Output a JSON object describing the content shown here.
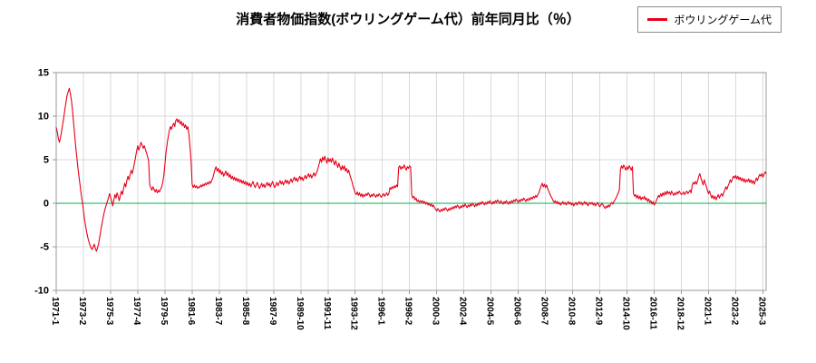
{
  "title": "消費者物価指数(ボウリングゲーム代）前年同月比（％）",
  "legend": {
    "label": "ボウリングゲーム代"
  },
  "chart_data": {
    "type": "line",
    "title": "消費者物価指数(ボウリングゲーム代）前年同月比（％）",
    "series_name": "ボウリングゲーム代",
    "ylabel": "",
    "xlabel": "",
    "ylim": [
      -10,
      15
    ],
    "y_ticks": [
      -10,
      -5,
      0,
      5,
      10,
      15
    ],
    "grid": true,
    "zero_line": true,
    "legend_position": "top-right",
    "x_frequency": "monthly",
    "x_start": "1971-1",
    "x_tick_step": 25,
    "x_ticks": [
      "1971-1",
      "1973-2",
      "1975-3",
      "1977-4",
      "1979-5",
      "1981-6",
      "1983-7",
      "1985-8",
      "1987-9",
      "1989-10",
      "1991-11",
      "1993-12",
      "1996-1",
      "1998-2",
      "2000-3",
      "2002-4",
      "2004-5",
      "2006-6",
      "2008-7",
      "2010-8",
      "2012-9",
      "2014-10",
      "2016-11",
      "2018-12",
      "2021-1",
      "2023-2",
      "2025-3"
    ],
    "colors": {
      "series": "#e60019",
      "zero_line": "#00b050",
      "grid": "#d9d9d9",
      "axis": "#9a9a9a",
      "text": "#000000"
    },
    "values": [
      8.7,
      8.2,
      7.4,
      7.0,
      7.6,
      8.3,
      9.1,
      9.9,
      10.8,
      11.6,
      12.4,
      12.8,
      13.2,
      12.6,
      11.8,
      10.6,
      9.2,
      7.8,
      6.4,
      5.2,
      4.0,
      3.0,
      2.0,
      1.0,
      0.2,
      -0.8,
      -1.8,
      -2.6,
      -3.3,
      -3.9,
      -4.4,
      -4.8,
      -5.1,
      -5.3,
      -5.0,
      -4.7,
      -5.2,
      -5.5,
      -5.1,
      -4.6,
      -3.9,
      -3.1,
      -2.4,
      -1.7,
      -1.1,
      -0.6,
      -0.2,
      0.2,
      0.6,
      1.1,
      0.7,
      0.2,
      -0.3,
      0.4,
      1.0,
      0.6,
      1.2,
      0.8,
      0.3,
      0.9,
      1.4,
      1.0,
      1.7,
      2.3,
      1.9,
      2.6,
      3.1,
      2.7,
      3.3,
      3.8,
      3.4,
      4.0,
      4.6,
      5.3,
      6.0,
      6.6,
      6.1,
      6.5,
      7.0,
      6.7,
      6.3,
      6.6,
      6.2,
      5.8,
      5.4,
      4.9,
      2.2,
      1.8,
      1.5,
      1.9,
      1.6,
      1.3,
      1.6,
      1.2,
      1.5,
      1.3,
      1.6,
      1.9,
      2.4,
      3.2,
      4.5,
      5.8,
      6.8,
      7.6,
      8.3,
      8.8,
      8.5,
      8.9,
      9.2,
      8.8,
      9.5,
      9.7,
      9.3,
      9.6,
      9.1,
      9.4,
      8.9,
      9.2,
      8.7,
      9.0,
      8.5,
      8.8,
      8.0,
      6.5,
      5.0,
      2.2,
      1.8,
      2.1,
      1.8,
      2.0,
      1.7,
      1.9,
      1.8,
      2.1,
      1.9,
      2.2,
      2.0,
      2.3,
      2.1,
      2.4,
      2.2,
      2.5,
      2.3,
      2.6,
      2.9,
      3.4,
      3.9,
      4.2,
      3.7,
      4.0,
      3.5,
      3.8,
      3.3,
      3.6,
      3.1,
      3.4,
      3.7,
      3.2,
      3.5,
      3.0,
      3.3,
      2.8,
      3.1,
      2.7,
      3.0,
      2.6,
      2.9,
      2.5,
      2.8,
      2.4,
      2.7,
      2.3,
      2.6,
      2.2,
      2.5,
      2.1,
      2.4,
      2.0,
      2.3,
      1.9,
      2.2,
      2.5,
      2.1,
      1.8,
      2.1,
      2.4,
      2.0,
      1.7,
      2.0,
      2.3,
      1.9,
      2.2,
      1.8,
      2.1,
      2.4,
      2.0,
      2.3,
      1.9,
      2.2,
      2.5,
      2.1,
      1.8,
      2.1,
      2.4,
      2.0,
      2.3,
      2.6,
      2.2,
      2.5,
      2.1,
      2.4,
      2.7,
      2.3,
      2.6,
      2.2,
      2.5,
      2.8,
      2.4,
      2.7,
      3.0,
      2.6,
      2.9,
      2.5,
      2.8,
      3.1,
      2.7,
      3.0,
      2.6,
      2.9,
      3.2,
      2.8,
      3.1,
      3.4,
      3.0,
      3.3,
      2.9,
      3.2,
      3.5,
      3.1,
      3.4,
      3.7,
      4.1,
      4.6,
      5.1,
      4.7,
      5.3,
      4.9,
      5.4,
      5.0,
      4.6,
      5.2,
      4.8,
      5.1,
      4.7,
      5.2,
      4.8,
      4.4,
      4.9,
      4.5,
      4.1,
      4.6,
      4.2,
      3.8,
      4.3,
      3.9,
      4.3,
      3.7,
      4.0,
      3.5,
      3.8,
      3.3,
      2.9,
      2.5,
      2.0,
      1.6,
      1.2,
      1.0,
      1.3,
      0.9,
      1.2,
      0.8,
      1.1,
      0.7,
      1.0,
      0.8,
      1.1,
      0.9,
      1.2,
      1.0,
      0.7,
      1.0,
      0.8,
      1.1,
      0.9,
      0.7,
      1.0,
      0.8,
      1.1,
      0.9,
      0.7,
      0.9,
      1.1,
      0.8,
      1.0,
      1.2,
      0.9,
      1.1,
      1.8,
      1.6,
      1.9,
      1.7,
      2.0,
      1.8,
      2.1,
      1.9,
      4.1,
      4.3,
      3.9,
      4.2,
      4.0,
      4.4,
      4.1,
      3.8,
      4.2,
      4.0,
      4.3,
      4.1,
      1.0,
      0.6,
      0.8,
      0.4,
      0.6,
      0.2,
      0.4,
      0.1,
      0.3,
      0.1,
      0.3,
      0.0,
      0.2,
      -0.1,
      0.1,
      -0.2,
      0.0,
      -0.3,
      -0.1,
      -0.4,
      -0.2,
      -0.5,
      -0.7,
      -0.9,
      -0.6,
      -0.8,
      -1.0,
      -0.7,
      -0.9,
      -0.6,
      -0.8,
      -0.5,
      -0.7,
      -0.9,
      -0.6,
      -0.8,
      -0.5,
      -0.7,
      -0.4,
      -0.6,
      -0.3,
      -0.5,
      -0.2,
      -0.4,
      -0.6,
      -0.3,
      -0.5,
      -0.2,
      -0.4,
      -0.1,
      -0.3,
      -0.5,
      -0.2,
      -0.4,
      -0.1,
      -0.3,
      0.0,
      -0.2,
      -0.4,
      -0.1,
      -0.3,
      0.0,
      -0.2,
      0.1,
      -0.1,
      0.2,
      0.0,
      -0.2,
      0.1,
      -0.1,
      0.2,
      0.0,
      0.3,
      0.1,
      -0.1,
      0.2,
      0.0,
      0.3,
      0.1,
      0.4,
      0.2,
      0.0,
      0.3,
      0.1,
      -0.1,
      0.2,
      0.0,
      0.3,
      0.1,
      -0.1,
      0.2,
      0.0,
      0.3,
      0.1,
      0.4,
      0.2,
      0.5,
      0.3,
      0.1,
      0.4,
      0.2,
      0.5,
      0.3,
      0.6,
      0.4,
      0.2,
      0.5,
      0.3,
      0.6,
      0.4,
      0.7,
      0.5,
      0.8,
      0.6,
      0.9,
      0.7,
      1.0,
      1.2,
      1.6,
      2.0,
      2.3,
      1.9,
      2.2,
      1.8,
      2.1,
      1.7,
      1.4,
      1.1,
      0.8,
      0.6,
      0.3,
      0.1,
      0.3,
      0.0,
      0.2,
      -0.1,
      0.1,
      -0.2,
      0.0,
      0.2,
      -0.1,
      0.1,
      -0.2,
      0.0,
      0.2,
      -0.1,
      0.1,
      -0.2,
      0.0,
      -0.3,
      -0.1,
      0.1,
      -0.2,
      0.0,
      0.2,
      -0.1,
      0.1,
      -0.2,
      0.0,
      0.2,
      -0.1,
      0.1,
      -0.3,
      -0.1,
      0.1,
      -0.1,
      0.1,
      -0.2,
      0.0,
      -0.3,
      -0.1,
      0.1,
      -0.2,
      -0.4,
      -0.2,
      0.0,
      -0.2,
      -0.4,
      -0.6,
      -0.3,
      -0.5,
      -0.2,
      -0.4,
      -0.1,
      0.1,
      -0.1,
      0.2,
      0.4,
      0.6,
      0.9,
      1.2,
      1.5,
      3.9,
      4.3,
      4.0,
      4.4,
      4.1,
      3.8,
      4.2,
      3.9,
      4.3,
      4.1,
      3.8,
      4.2,
      1.1,
      0.8,
      1.0,
      0.6,
      0.9,
      0.5,
      0.8,
      0.4,
      0.7,
      0.5,
      0.8,
      0.4,
      0.6,
      0.2,
      0.5,
      0.1,
      0.3,
      -0.1,
      0.2,
      -0.2,
      0.0,
      0.3,
      0.6,
      0.9,
      0.7,
      1.1,
      0.8,
      1.2,
      0.9,
      1.3,
      1.0,
      1.4,
      1.1,
      1.3,
      1.0,
      1.4,
      1.1,
      0.9,
      1.2,
      1.0,
      1.3,
      1.1,
      1.4,
      1.2,
      1.0,
      1.1,
      1.3,
      1.0,
      1.2,
      1.4,
      1.1,
      1.3,
      1.5,
      1.2,
      2.1,
      2.4,
      2.2,
      2.5,
      2.2,
      2.6,
      3.1,
      3.4,
      2.9,
      2.5,
      2.1,
      2.7,
      2.3,
      1.9,
      1.5,
      1.1,
      1.4,
      1.0,
      0.6,
      0.9,
      0.5,
      0.8,
      0.4,
      0.7,
      1.0,
      0.6,
      0.9,
      1.1,
      0.8,
      1.2,
      1.5,
      1.9,
      1.6,
      2.0,
      2.3,
      2.7,
      2.4,
      2.8,
      3.1,
      2.9,
      3.2,
      2.8,
      3.1,
      2.7,
      3.0,
      2.6,
      2.9,
      2.5,
      2.8,
      2.4,
      2.7,
      2.5,
      2.8,
      2.4,
      2.7,
      2.3,
      2.6,
      2.2,
      2.5,
      2.9,
      2.6,
      3.0,
      3.3,
      3.1,
      3.4,
      3.0,
      3.3,
      3.6,
      3.4
    ]
  }
}
